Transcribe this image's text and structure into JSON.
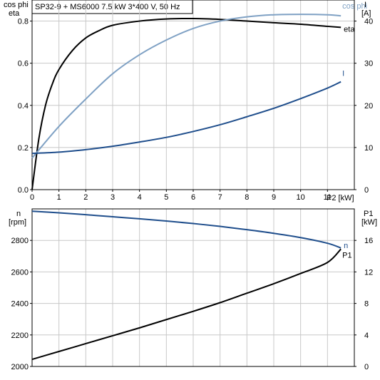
{
  "title_box": "SP32-9 + MS6000   7.5 kW   3*400 V, 50 Hz",
  "colors": {
    "eta": "#000000",
    "cos_phi": "#7fa1c4",
    "current": "#1f4e8c",
    "speed": "#1f4e8c",
    "p1": "#000000",
    "grid": "#c8c8c8"
  },
  "chart_data": [
    {
      "type": "line",
      "xlabel": "P2 [kW]",
      "xlim": [
        0,
        12
      ],
      "x_ticks": [
        "0",
        "1",
        "2",
        "3",
        "4",
        "5",
        "6",
        "7",
        "8",
        "9",
        "10",
        "11"
      ],
      "grid": true,
      "left_axis": {
        "label_line1": "cos phi",
        "label_line2": "eta",
        "ylim": [
          0.0,
          0.9
        ],
        "ticks": [
          "0.0",
          "0.2",
          "0.4",
          "0.6",
          "0.8"
        ]
      },
      "right_axis": {
        "label_line1": "I",
        "label_line2": "[A]",
        "ylim": [
          0,
          45
        ],
        "ticks": [
          "0",
          "10",
          "20",
          "30",
          "40"
        ]
      },
      "series": [
        {
          "name": "eta",
          "axis": "left",
          "x": [
            0,
            0.25,
            0.5,
            0.75,
            1,
            1.5,
            2,
            2.5,
            3,
            4,
            5,
            6,
            7,
            8,
            9,
            10,
            11,
            11.5
          ],
          "y": [
            0.0,
            0.24,
            0.4,
            0.5,
            0.57,
            0.66,
            0.72,
            0.755,
            0.78,
            0.8,
            0.81,
            0.812,
            0.808,
            0.8,
            0.792,
            0.785,
            0.775,
            0.77
          ]
        },
        {
          "name": "cos phi",
          "axis": "left",
          "x": [
            0,
            1,
            2,
            3,
            4,
            5,
            6,
            7,
            8,
            9,
            10,
            11,
            11.5
          ],
          "y": [
            0.15,
            0.3,
            0.43,
            0.55,
            0.64,
            0.71,
            0.765,
            0.8,
            0.82,
            0.83,
            0.832,
            0.83,
            0.825
          ]
        },
        {
          "name": "I",
          "axis": "right",
          "x": [
            0,
            1,
            2,
            3,
            4,
            5,
            6,
            7,
            8,
            9,
            10,
            11,
            11.5
          ],
          "y": [
            8.6,
            8.9,
            9.5,
            10.3,
            11.3,
            12.4,
            13.8,
            15.4,
            17.3,
            19.3,
            21.6,
            24.1,
            25.6
          ]
        }
      ]
    },
    {
      "type": "line",
      "xlim": [
        0,
        12
      ],
      "grid": true,
      "left_axis": {
        "label_line1": "n",
        "label_line2": "[rpm]",
        "ylim": [
          2000,
          3000
        ],
        "ticks": [
          "2000",
          "2200",
          "2400",
          "2600",
          "2800"
        ]
      },
      "right_axis": {
        "label_line1": "P1",
        "label_line2": "[kW]",
        "ylim": [
          0,
          20
        ],
        "ticks": [
          "0",
          "4",
          "8",
          "12",
          "16"
        ]
      },
      "series": [
        {
          "name": "n",
          "axis": "left",
          "x": [
            0,
            1,
            2,
            3,
            4,
            5,
            6,
            7,
            8,
            9,
            10,
            11,
            11.5
          ],
          "y": [
            2985,
            2975,
            2963,
            2950,
            2937,
            2923,
            2907,
            2889,
            2868,
            2845,
            2818,
            2782,
            2752
          ]
        },
        {
          "name": "P1",
          "axis": "right",
          "x": [
            0,
            1,
            2,
            3,
            4,
            5,
            6,
            7,
            8,
            9,
            10,
            11,
            11.5
          ],
          "y": [
            0.9,
            1.9,
            2.9,
            3.9,
            4.9,
            5.95,
            7.0,
            8.1,
            9.3,
            10.5,
            11.8,
            13.2,
            14.9
          ]
        }
      ]
    }
  ]
}
